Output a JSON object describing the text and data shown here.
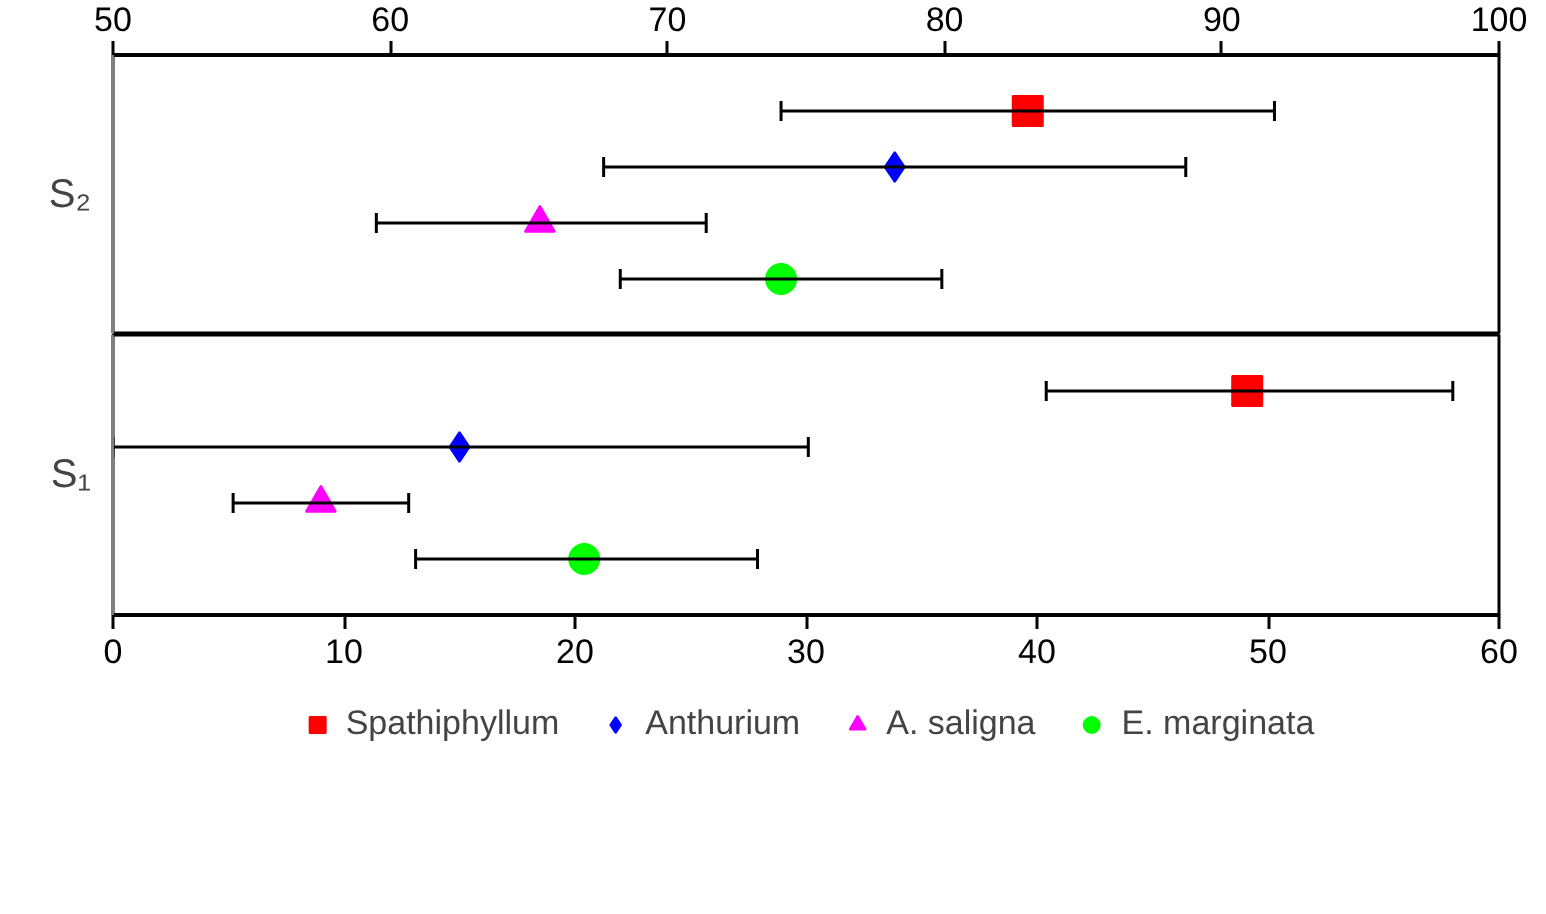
{
  "chart_data": [
    {
      "type": "scatter",
      "orientation": "horizontal",
      "categories": [
        "S₂"
      ],
      "xlim": [
        50,
        100
      ],
      "xticks": [
        50,
        60,
        70,
        80,
        90,
        100
      ],
      "grid": false,
      "series": [
        {
          "color": "#ff0000",
          "marker": "square",
          "values": [
            83
          ],
          "errors": [
            [
              74.1,
              91.9
            ]
          ]
        },
        {
          "color": "#0000ff",
          "marker": "diamond",
          "values": [
            78.2
          ],
          "errors": [
            [
              67.7,
              88.7
            ]
          ]
        },
        {
          "color": "#ff00ff",
          "marker": "triangle",
          "values": [
            65.4
          ],
          "errors": [
            [
              59.5,
              71.4
            ]
          ]
        },
        {
          "color": "#00ff00",
          "marker": "circle",
          "values": [
            74.1
          ],
          "errors": [
            [
              68.3,
              79.9
            ]
          ]
        }
      ]
    },
    {
      "type": "scatter",
      "orientation": "horizontal",
      "categories": [
        "S₁"
      ],
      "xlim": [
        0,
        60
      ],
      "xticks": [
        0,
        10,
        20,
        30,
        40,
        50,
        60
      ],
      "grid": false,
      "legend": "bottom",
      "series": [
        {
          "name": "Spathiphyllum",
          "color": "#ff0000",
          "marker": "square",
          "values": [
            49.1
          ],
          "errors": [
            [
              40.4,
              58.0
            ]
          ]
        },
        {
          "name": "Anthurium",
          "color": "#0000ff",
          "marker": "diamond",
          "values": [
            15.0
          ],
          "errors": [
            [
              0,
              30.1
            ]
          ]
        },
        {
          "name": "A. saligna",
          "color": "#ff00ff",
          "marker": "triangle",
          "values": [
            9.0
          ],
          "errors": [
            [
              5.2,
              12.8
            ]
          ]
        },
        {
          "name": "E. marginata",
          "color": "#00ff00",
          "marker": "circle",
          "values": [
            20.4
          ],
          "errors": [
            [
              13.1,
              27.9
            ]
          ]
        }
      ]
    }
  ]
}
